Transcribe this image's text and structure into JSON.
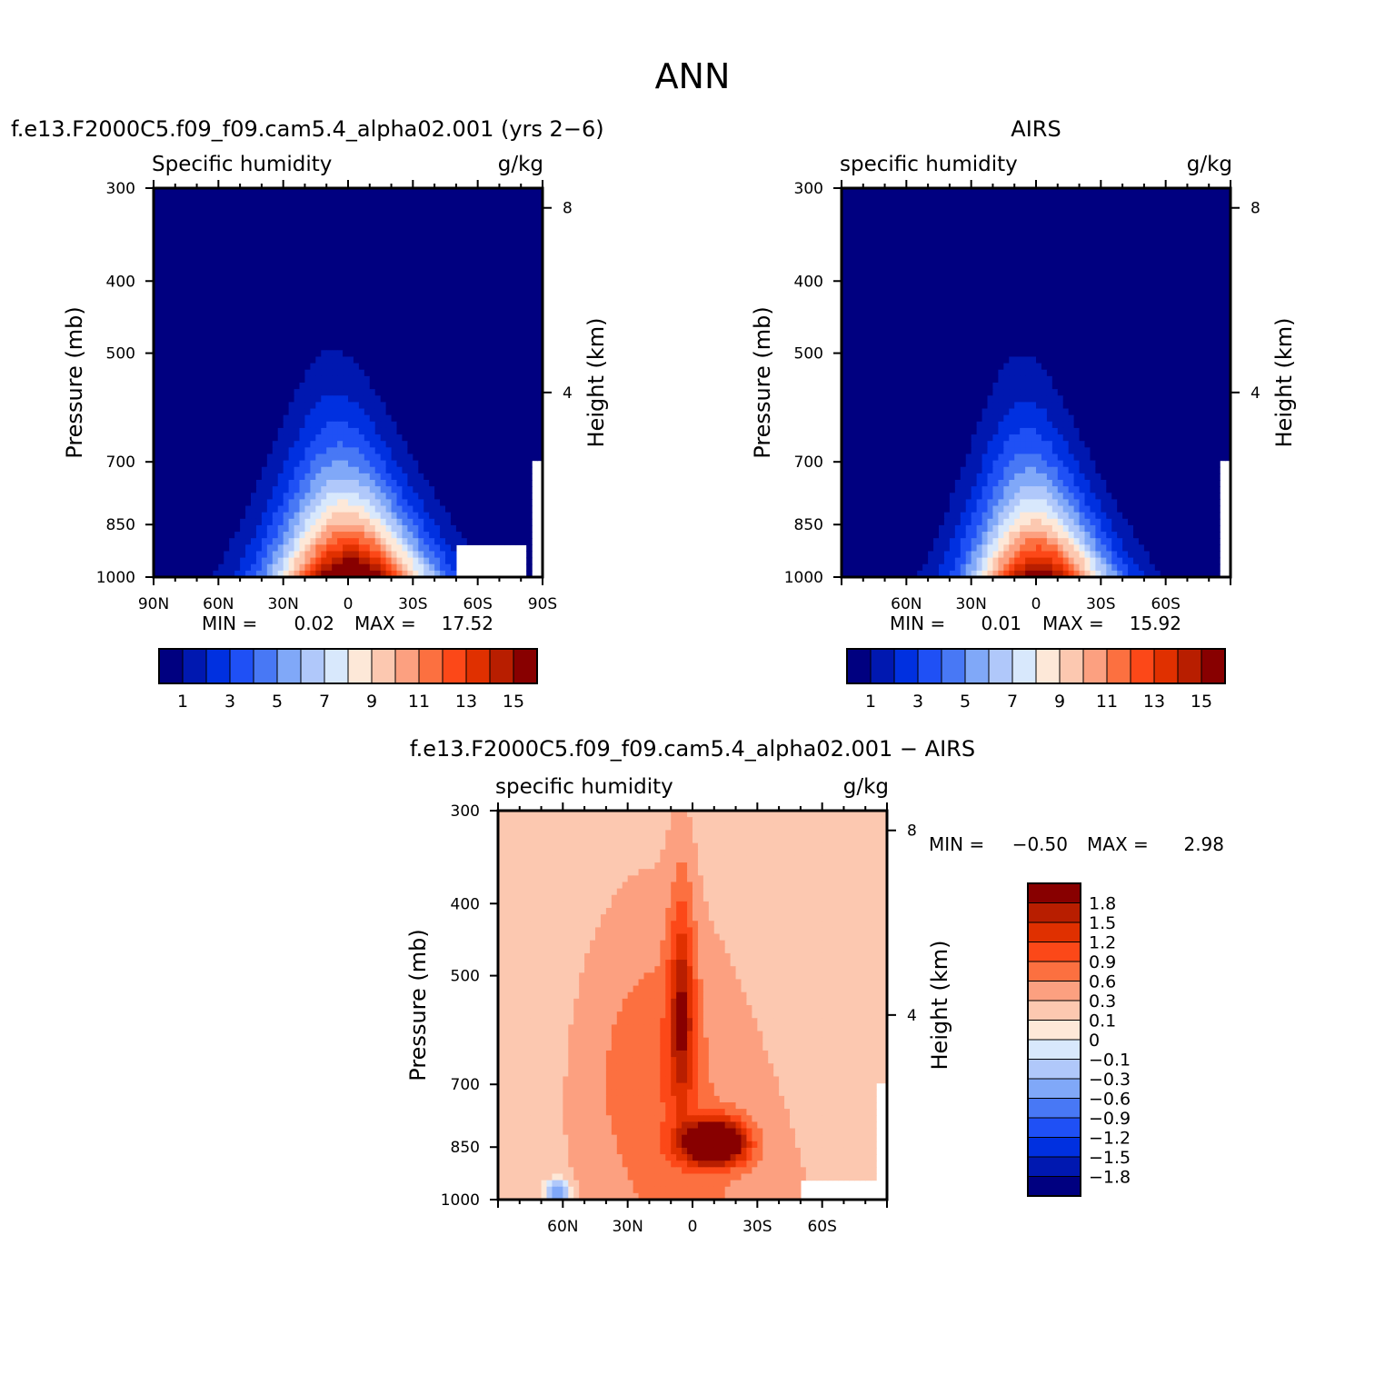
{
  "page_title": "ANN",
  "chart_data": [
    {
      "type": "contour",
      "title": "f.e13.F2000C5.f09_f09.cam5.4_alpha02.001 (yrs 2−6)",
      "left_string": "Specific humidity",
      "right_string": "g/kg",
      "ylabel": "Pressure (mb)",
      "y2label": "Height (km)",
      "xlim": [
        90,
        -90
      ],
      "ylim": [
        1000,
        300
      ],
      "y_scale": "log",
      "x_ticks": [
        {
          "value": 90,
          "label": "90N"
        },
        {
          "value": 60,
          "label": "60N"
        },
        {
          "value": 30,
          "label": "30N"
        },
        {
          "value": 0,
          "label": "0"
        },
        {
          "value": -30,
          "label": "30S"
        },
        {
          "value": -60,
          "label": "60S"
        },
        {
          "value": -90,
          "label": "90S"
        }
      ],
      "y_ticks": [
        {
          "value": 300,
          "label": "300"
        },
        {
          "value": 400,
          "label": "400"
        },
        {
          "value": 500,
          "label": "500"
        },
        {
          "value": 700,
          "label": "700"
        },
        {
          "value": 850,
          "label": "850"
        },
        {
          "value": 1000,
          "label": "1000"
        }
      ],
      "y2_ticks": [
        {
          "value": 8,
          "label": "8"
        },
        {
          "value": 4,
          "label": "4"
        }
      ],
      "stats": {
        "min_label": "MIN =",
        "min": "0.02",
        "max_label": "MAX =",
        "max": "17.52"
      },
      "peak": 17.5,
      "colorbar": {
        "orientation": "horizontal",
        "labels": [
          "1",
          "3",
          "5",
          "7",
          "9",
          "11",
          "13",
          "15"
        ],
        "colors": [
          "#000080",
          "#0018b0",
          "#0030e0",
          "#1f50f5",
          "#4878f5",
          "#80a8f8",
          "#b0c8fa",
          "#d8e8fc",
          "#fde8d8",
          "#fcc8b0",
          "#fca080",
          "#fc7040",
          "#fc4818",
          "#e03000",
          "#b81e00",
          "#880000"
        ]
      }
    },
    {
      "type": "contour",
      "title": "AIRS",
      "left_string": "specific humidity",
      "right_string": "g/kg",
      "ylabel": "Pressure (mb)",
      "y2label": "Height (km)",
      "xlim": [
        90,
        -90
      ],
      "ylim": [
        1000,
        300
      ],
      "y_scale": "log",
      "x_ticks": [
        {
          "value": 60,
          "label": "60N"
        },
        {
          "value": 30,
          "label": "30N"
        },
        {
          "value": 0,
          "label": "0"
        },
        {
          "value": -30,
          "label": "30S"
        },
        {
          "value": -60,
          "label": "60S"
        }
      ],
      "y_ticks": [
        {
          "value": 300,
          "label": "300"
        },
        {
          "value": 400,
          "label": "400"
        },
        {
          "value": 500,
          "label": "500"
        },
        {
          "value": 700,
          "label": "700"
        },
        {
          "value": 850,
          "label": "850"
        },
        {
          "value": 1000,
          "label": "1000"
        }
      ],
      "y2_ticks": [
        {
          "value": 8,
          "label": "8"
        },
        {
          "value": 4,
          "label": "4"
        }
      ],
      "stats": {
        "min_label": "MIN =",
        "min": "0.01",
        "max_label": "MAX =",
        "max": "15.92"
      },
      "peak": 15.9,
      "colorbar": {
        "orientation": "horizontal",
        "labels": [
          "1",
          "3",
          "5",
          "7",
          "9",
          "11",
          "13",
          "15"
        ],
        "colors": [
          "#000080",
          "#0018b0",
          "#0030e0",
          "#1f50f5",
          "#4878f5",
          "#80a8f8",
          "#b0c8fa",
          "#d8e8fc",
          "#fde8d8",
          "#fcc8b0",
          "#fca080",
          "#fc7040",
          "#fc4818",
          "#e03000",
          "#b81e00",
          "#880000"
        ]
      }
    },
    {
      "type": "contour",
      "title": "f.e13.F2000C5.f09_f09.cam5.4_alpha02.001 − AIRS",
      "left_string": "specific humidity",
      "right_string": "g/kg",
      "ylabel": "Pressure (mb)",
      "y2label": "Height (km)",
      "xlim": [
        90,
        -90
      ],
      "ylim": [
        1000,
        300
      ],
      "y_scale": "log",
      "x_ticks": [
        {
          "value": 60,
          "label": "60N"
        },
        {
          "value": 30,
          "label": "30N"
        },
        {
          "value": 0,
          "label": "0"
        },
        {
          "value": -30,
          "label": "30S"
        },
        {
          "value": -60,
          "label": "60S"
        }
      ],
      "y_ticks": [
        {
          "value": 300,
          "label": "300"
        },
        {
          "value": 400,
          "label": "400"
        },
        {
          "value": 500,
          "label": "500"
        },
        {
          "value": 700,
          "label": "700"
        },
        {
          "value": 850,
          "label": "850"
        },
        {
          "value": 1000,
          "label": "1000"
        }
      ],
      "y2_ticks": [
        {
          "value": 8,
          "label": "8"
        },
        {
          "value": 4,
          "label": "4"
        }
      ],
      "stats": {
        "min_label": "MIN =",
        "min": "−0.50",
        "max_label": "MAX =",
        "max": "2.98"
      },
      "colorbar": {
        "orientation": "vertical",
        "labels": [
          "1.8",
          "1.5",
          "1.2",
          "0.9",
          "0.6",
          "0.3",
          "0.1",
          "0",
          "−0.1",
          "−0.3",
          "−0.6",
          "−0.9",
          "−1.2",
          "−1.5",
          "−1.8"
        ],
        "colors": [
          "#880000",
          "#b81e00",
          "#e03000",
          "#fc4818",
          "#fc7040",
          "#fca080",
          "#fcc8b0",
          "#fde8d8",
          "#d8e8fc",
          "#b0c8fa",
          "#80a8f8",
          "#4878f5",
          "#1f50f5",
          "#0030e0",
          "#0018b0",
          "#000080"
        ]
      }
    }
  ]
}
